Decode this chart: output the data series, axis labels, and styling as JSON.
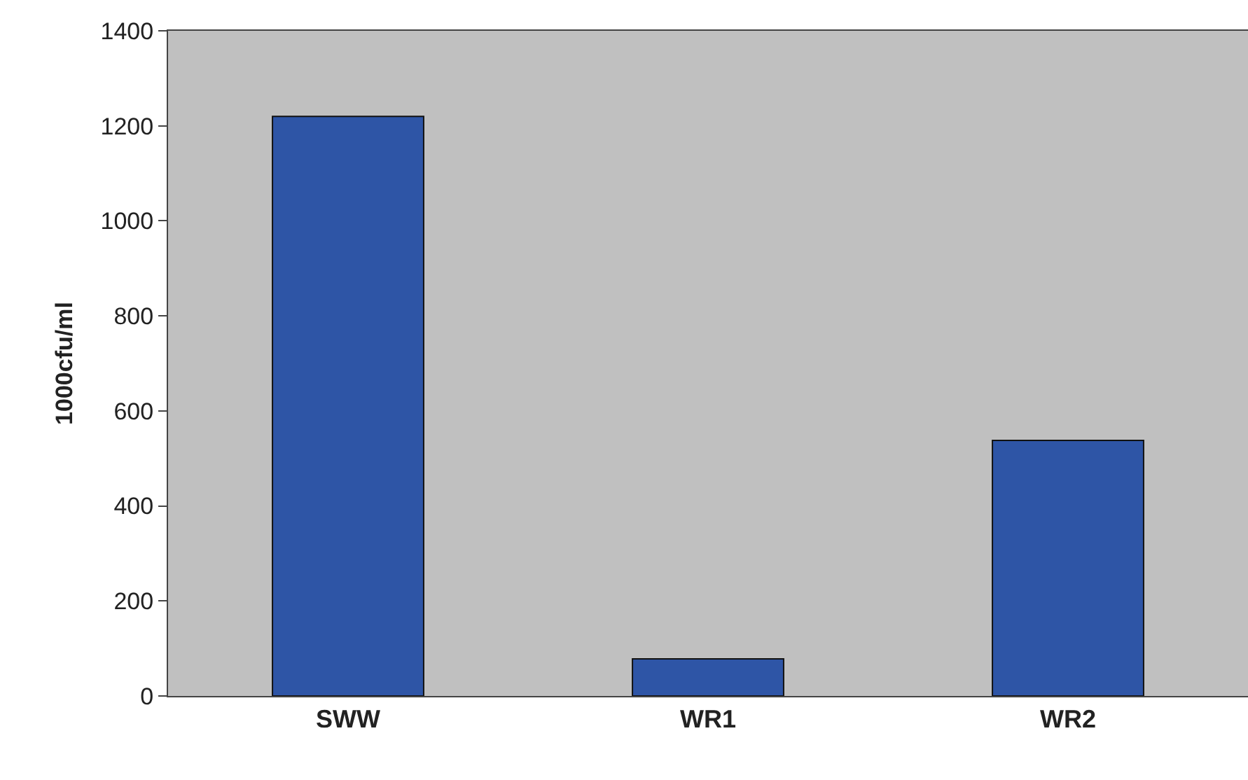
{
  "chart_data": {
    "type": "bar",
    "ylabel": "1000cfu/ml",
    "categories": [
      "SWW",
      "WR1",
      "WR2"
    ],
    "values": [
      1220,
      78,
      538
    ],
    "color": "#2e55a6",
    "ylim": [
      0,
      1400
    ],
    "yticks": [
      0,
      200,
      400,
      600,
      800,
      1000,
      1200,
      1400
    ],
    "grid": false
  }
}
